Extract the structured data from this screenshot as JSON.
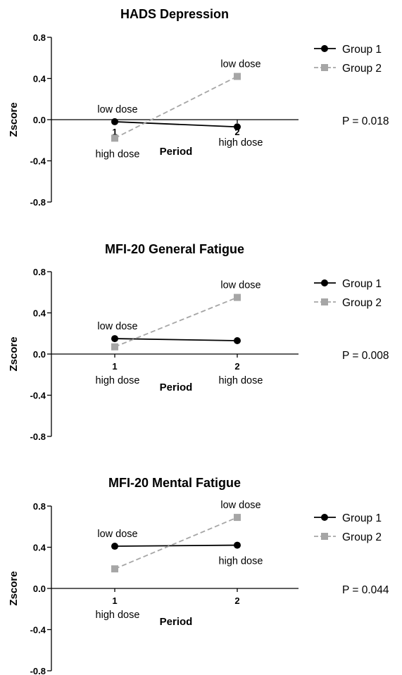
{
  "chart_data": [
    {
      "type": "line",
      "title": "HADS Depression",
      "xlabel": "Period",
      "ylabel": "Zscore",
      "categories": [
        "1",
        "2"
      ],
      "ylim": [
        -0.8,
        0.8
      ],
      "yticks": [
        "0.8",
        "0.4",
        "0.0",
        "-0.4",
        "-0.8"
      ],
      "series": [
        {
          "name": "Group 1",
          "values": [
            -0.02,
            -0.07
          ],
          "labels": [
            "low dose",
            "high dose"
          ],
          "color": "#000000",
          "marker": "circle",
          "dash": "solid"
        },
        {
          "name": "Group 2",
          "values": [
            -0.18,
            0.42
          ],
          "labels": [
            "high dose",
            "low dose"
          ],
          "color": "#a6a6a6",
          "marker": "square",
          "dash": "dashed"
        }
      ],
      "p_value": "P = 0.018",
      "legend_position": "right"
    },
    {
      "type": "line",
      "title": "MFI-20 General Fatigue",
      "xlabel": "Period",
      "ylabel": "Zscore",
      "categories": [
        "1",
        "2"
      ],
      "ylim": [
        -0.8,
        0.8
      ],
      "yticks": [
        "0.8",
        "0.4",
        "0.0",
        "-0.4",
        "-0.8"
      ],
      "series": [
        {
          "name": "Group 1",
          "values": [
            0.15,
            0.13
          ],
          "labels": [
            "low dose",
            "high dose"
          ],
          "color": "#000000",
          "marker": "circle",
          "dash": "solid"
        },
        {
          "name": "Group 2",
          "values": [
            0.07,
            0.55
          ],
          "labels": [
            "high dose",
            "low dose"
          ],
          "color": "#a6a6a6",
          "marker": "square",
          "dash": "dashed"
        }
      ],
      "p_value": "P = 0.008",
      "legend_position": "right"
    },
    {
      "type": "line",
      "title": "MFI-20 Mental Fatigue",
      "xlabel": "Period",
      "ylabel": "Zscore",
      "categories": [
        "1",
        "2"
      ],
      "ylim": [
        -0.8,
        0.8
      ],
      "yticks": [
        "0.8",
        "0.4",
        "0.0",
        "-0.4",
        "-0.8"
      ],
      "series": [
        {
          "name": "Group 1",
          "values": [
            0.41,
            0.42
          ],
          "labels": [
            "low dose",
            "high dose"
          ],
          "color": "#000000",
          "marker": "circle",
          "dash": "solid"
        },
        {
          "name": "Group 2",
          "values": [
            0.19,
            0.69
          ],
          "labels": [
            "high dose",
            "low dose"
          ],
          "color": "#a6a6a6",
          "marker": "square",
          "dash": "dashed"
        }
      ],
      "p_value": "P = 0.044",
      "legend_position": "right"
    }
  ]
}
